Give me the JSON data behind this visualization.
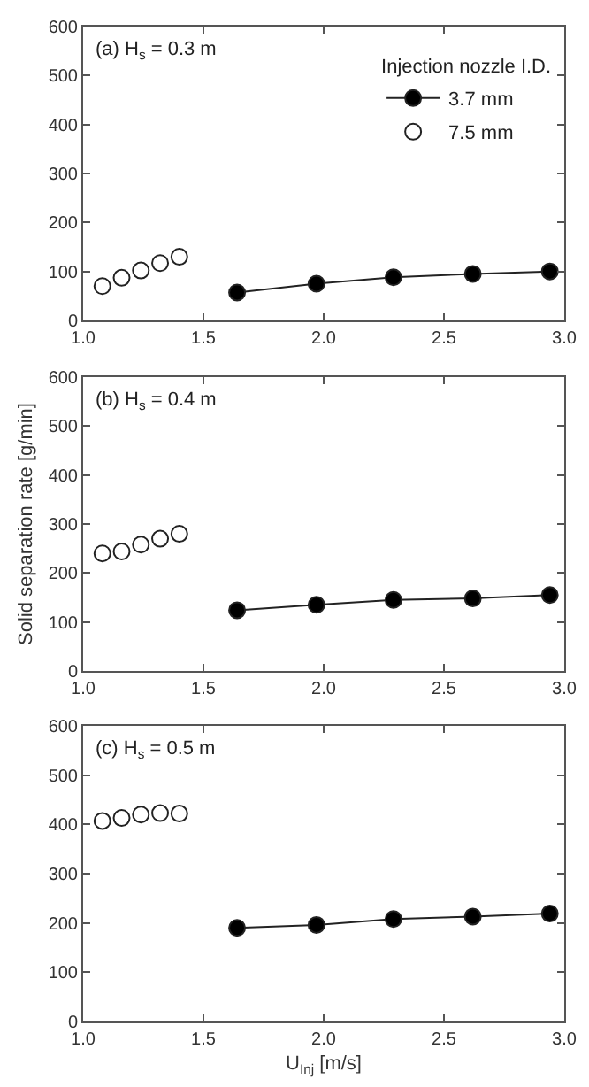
{
  "chart_data": [
    {
      "type": "line",
      "annotations": [
        "(a) H$_{s}$ = 0.3 m"
      ],
      "legend": "top right",
      "legend_title": "Injection nozzle I.D.",
      "marker": "circle",
      "xlim": [
        1.0,
        3.0
      ],
      "xticks": [
        {
          "value": 1.0,
          "label": "1.0"
        },
        {
          "value": 1.5,
          "label": "1.5"
        },
        {
          "value": 2.0,
          "label": "2.0"
        },
        {
          "value": 2.5,
          "label": "2.5"
        },
        {
          "value": 3.0,
          "label": "3.0"
        }
      ],
      "ylim": [
        0,
        600
      ],
      "yticks": [
        0,
        100,
        200,
        300,
        400,
        500,
        600
      ],
      "grid": false,
      "series": [
        {
          "name": "3.7 mm",
          "type": "line",
          "color": "#000000",
          "x": [
            1.64,
            1.97,
            2.29,
            2.62,
            2.94
          ],
          "values": [
            57,
            75,
            88,
            95,
            100
          ]
        },
        {
          "name": "7.5 mm",
          "type": "scatter",
          "color": "#ffffff",
          "x": [
            1.08,
            1.16,
            1.24,
            1.32,
            1.4
          ],
          "values": [
            70,
            87,
            102,
            117,
            130
          ]
        }
      ]
    },
    {
      "type": "line",
      "annotations": [
        "(b) H$_{s}$ = 0.4 m"
      ],
      "ylabel": "Solid separation rate [g/min]",
      "legend": false,
      "marker": "circle",
      "xlim": [
        1.0,
        3.0
      ],
      "xticks": [
        {
          "value": 1.0,
          "label": "1.0"
        },
        {
          "value": 1.5,
          "label": "1.5"
        },
        {
          "value": 2.0,
          "label": "2.0"
        },
        {
          "value": 2.5,
          "label": "2.5"
        },
        {
          "value": 3.0,
          "label": "3.0"
        }
      ],
      "ylim": [
        0,
        600
      ],
      "yticks": [
        0,
        100,
        200,
        300,
        400,
        500,
        600
      ],
      "grid": false,
      "series": [
        {
          "type": "line",
          "color": "#000000",
          "x": [
            1.64,
            1.97,
            2.29,
            2.62,
            2.94
          ],
          "values": [
            124,
            135,
            145,
            148,
            155
          ]
        },
        {
          "type": "scatter",
          "color": "#ffffff",
          "x": [
            1.08,
            1.16,
            1.24,
            1.32,
            1.4
          ],
          "values": [
            240,
            244,
            258,
            270,
            280
          ]
        }
      ]
    },
    {
      "type": "line",
      "annotations": [
        "(c) H$_{s}$ = 0.5 m"
      ],
      "xlabel": "U$_{Inj}$ [m/s]",
      "legend": false,
      "marker": "circle",
      "xlim": [
        1.0,
        3.0
      ],
      "xticks": [
        {
          "value": 1.0,
          "label": "1.0"
        },
        {
          "value": 1.5,
          "label": "1.5"
        },
        {
          "value": 2.0,
          "label": "2.0"
        },
        {
          "value": 2.5,
          "label": "2.5"
        },
        {
          "value": 3.0,
          "label": "3.0"
        }
      ],
      "ylim": [
        0,
        600
      ],
      "yticks": [
        0,
        100,
        200,
        300,
        400,
        500,
        600
      ],
      "grid": false,
      "series": [
        {
          "type": "line",
          "color": "#000000",
          "x": [
            1.64,
            1.97,
            2.29,
            2.62,
            2.94
          ],
          "values": [
            190,
            196,
            208,
            213,
            219
          ]
        },
        {
          "type": "scatter",
          "color": "#ffffff",
          "x": [
            1.08,
            1.16,
            1.24,
            1.32,
            1.4
          ],
          "values": [
            407,
            413,
            420,
            423,
            422
          ]
        }
      ]
    }
  ]
}
